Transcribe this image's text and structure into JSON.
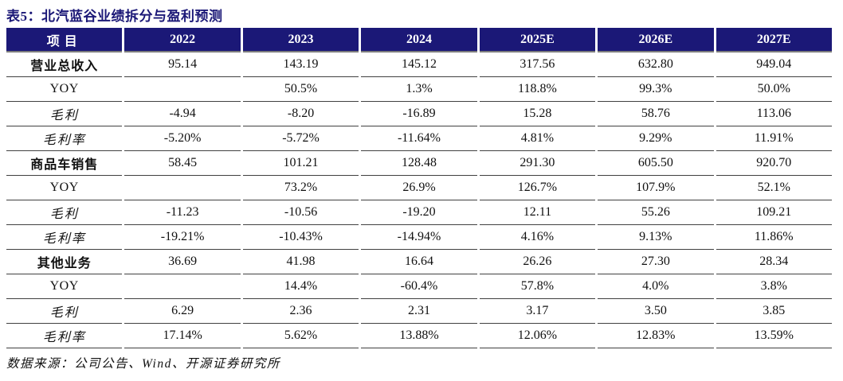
{
  "title": "表5：北汽蓝谷业绩拆分与盈利预测",
  "source": "数据来源：公司公告、Wind、开源证券研究所",
  "colors": {
    "header_bg": "#1b1877",
    "title_text": "#1b1877",
    "header_text": "#ffffff",
    "row_border": "#404040",
    "header_bottom_band": "#7d7d7d",
    "body_text": "#111111"
  },
  "table": {
    "columns": [
      "项目",
      "2022",
      "2023",
      "2024",
      "2025E",
      "2026E",
      "2027E"
    ],
    "rows": [
      {
        "label": "营业总收入",
        "type": "section",
        "values": [
          "95.14",
          "143.19",
          "145.12",
          "317.56",
          "632.80",
          "949.04"
        ]
      },
      {
        "label": "YOY",
        "type": "yoy",
        "values": [
          "",
          "50.5%",
          "1.3%",
          "118.8%",
          "99.3%",
          "50.0%"
        ]
      },
      {
        "label": "毛利",
        "type": "kai",
        "values": [
          "-4.94",
          "-8.20",
          "-16.89",
          "15.28",
          "58.76",
          "113.06"
        ]
      },
      {
        "label": "毛利率",
        "type": "kai",
        "values": [
          "-5.20%",
          "-5.72%",
          "-11.64%",
          "4.81%",
          "9.29%",
          "11.91%"
        ]
      },
      {
        "label": "商品车销售",
        "type": "section",
        "values": [
          "58.45",
          "101.21",
          "128.48",
          "291.30",
          "605.50",
          "920.70"
        ]
      },
      {
        "label": "YOY",
        "type": "yoy",
        "values": [
          "",
          "73.2%",
          "26.9%",
          "126.7%",
          "107.9%",
          "52.1%"
        ]
      },
      {
        "label": "毛利",
        "type": "kai",
        "values": [
          "-11.23",
          "-10.56",
          "-19.20",
          "12.11",
          "55.26",
          "109.21"
        ]
      },
      {
        "label": "毛利率",
        "type": "kai",
        "values": [
          "-19.21%",
          "-10.43%",
          "-14.94%",
          "4.16%",
          "9.13%",
          "11.86%"
        ]
      },
      {
        "label": "其他业务",
        "type": "section",
        "values": [
          "36.69",
          "41.98",
          "16.64",
          "26.26",
          "27.30",
          "28.34"
        ]
      },
      {
        "label": "YOY",
        "type": "yoy",
        "values": [
          "",
          "14.4%",
          "-60.4%",
          "57.8%",
          "4.0%",
          "3.8%"
        ]
      },
      {
        "label": "毛利",
        "type": "kai",
        "values": [
          "6.29",
          "2.36",
          "2.31",
          "3.17",
          "3.50",
          "3.85"
        ]
      },
      {
        "label": "毛利率",
        "type": "kai",
        "values": [
          "17.14%",
          "5.62%",
          "13.88%",
          "12.06%",
          "12.83%",
          "13.59%"
        ]
      }
    ]
  }
}
